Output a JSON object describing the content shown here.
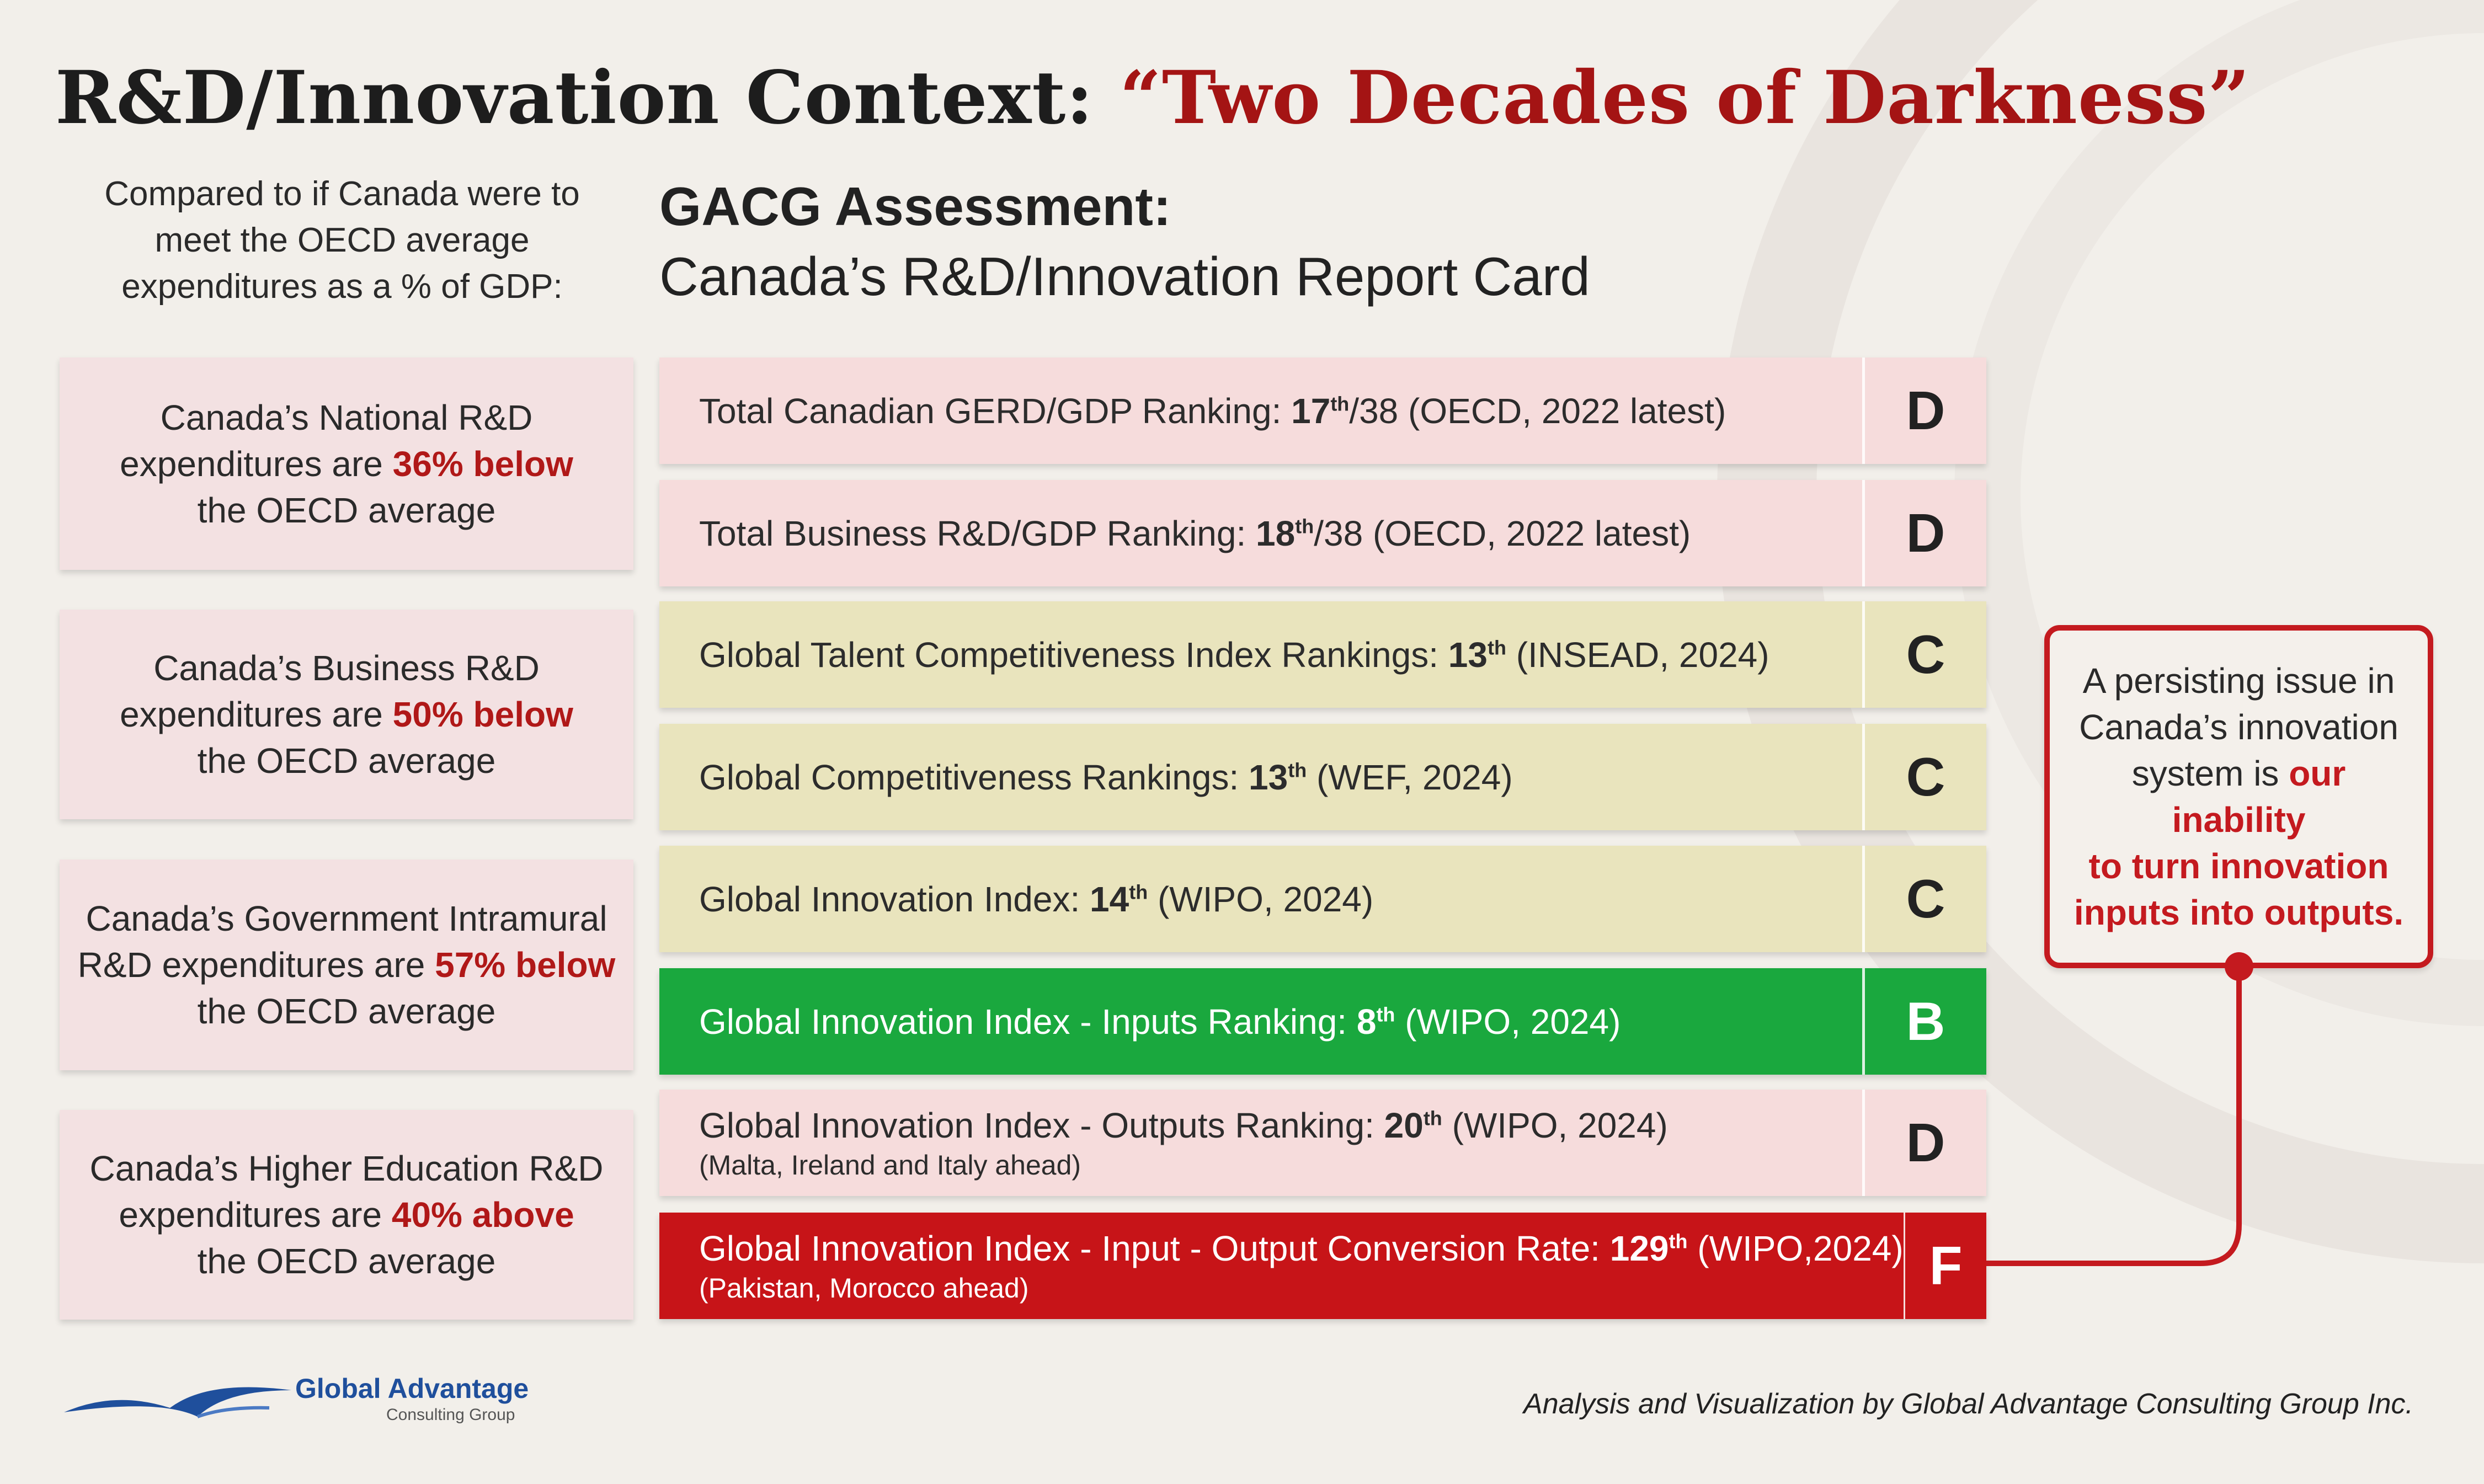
{
  "title": {
    "prefix": "R&D/Innovation Context: ",
    "open_quote": "“",
    "accent": "Two Decades of Darkness",
    "close_quote": "”"
  },
  "intro": {
    "line1": "Compared to if Canada were to",
    "line2": "meet the OECD average",
    "line3": "expenditures as a % of GDP:"
  },
  "assessment": {
    "title": "GACG Assessment:",
    "subtitle": "Canada’s R&D/Innovation Report Card"
  },
  "stats": [
    {
      "line1": "Canada’s National R&D",
      "line2_pre": "expenditures are ",
      "highlight": "36% below",
      "line3": "the OECD average"
    },
    {
      "line1": "Canada’s Business R&D",
      "line2_pre": "expenditures are ",
      "highlight": "50% below",
      "line3": "the OECD average"
    },
    {
      "line1": "Canada’s Government Intramural",
      "line2_pre": "R&D expenditures are ",
      "highlight": "57% below",
      "line3": "the OECD average"
    },
    {
      "line1": "Canada’s Higher Education R&D",
      "line2_pre": "expenditures are ",
      "highlight": "40% above",
      "line3": "the OECD average"
    }
  ],
  "report_rows": [
    {
      "pre": "Total Canadian GERD/GDP Ranking: ",
      "rank": "17",
      "sup": "th",
      "post": "/38 (OECD, 2022 latest)",
      "note": "",
      "grade": "D",
      "color": "#f6dcdc"
    },
    {
      "pre": "Total Business R&D/GDP Ranking: ",
      "rank": "18",
      "sup": "th",
      "post": "/38 (OECD, 2022 latest)",
      "note": "",
      "grade": "D",
      "color": "#f6dcdc"
    },
    {
      "pre": "Global Talent Competitiveness Index Rankings: ",
      "rank": "13",
      "sup": "th",
      "post": " (INSEAD, 2024)",
      "note": "",
      "grade": "C",
      "color": "#e9e4bd"
    },
    {
      "pre": "Global Competitiveness Rankings: ",
      "rank": "13",
      "sup": "th",
      "post": " (WEF, 2024)",
      "note": "",
      "grade": "C",
      "color": "#e9e4bd"
    },
    {
      "pre": "Global Innovation Index: ",
      "rank": "14",
      "sup": "th",
      "post": " (WIPO, 2024)",
      "note": "",
      "grade": "C",
      "color": "#e9e4bd"
    },
    {
      "pre": "Global Innovation Index - Inputs Ranking: ",
      "rank": "8",
      "sup": "th",
      "post": " (WIPO, 2024)",
      "note": "",
      "grade": "B",
      "color": "#1aa83e"
    },
    {
      "pre": "Global Innovation Index - Outputs Ranking: ",
      "rank": "20",
      "sup": "th",
      "post": " (WIPO, 2024)",
      "note": "(Malta, Ireland and Italy ahead)",
      "grade": "D",
      "color": "#f6dcdc"
    },
    {
      "pre": "Global Innovation Index - Input - Output Conversion Rate: ",
      "rank": "129",
      "sup": "th",
      "post": " (WIPO,2024)",
      "note": "(Pakistan, Morocco ahead)",
      "grade": "F",
      "color": "#c71418"
    }
  ],
  "callout": {
    "line1": "A persisting issue in",
    "line2": "Canada’s innovation",
    "line3_pre": "system is ",
    "line3_hl": "our inability",
    "line4": "to turn innovation",
    "line5": "inputs into outputs."
  },
  "logo": {
    "name": "Global Advantage",
    "sub": "Consulting Group"
  },
  "credit": "Analysis and Visualization by Global Advantage Consulting Group Inc.",
  "colors": {
    "accent_red": "#a41414",
    "highlight_red": "#b01818",
    "callout_red": "#c41a1f",
    "logo_blue": "#1f4f9c"
  }
}
